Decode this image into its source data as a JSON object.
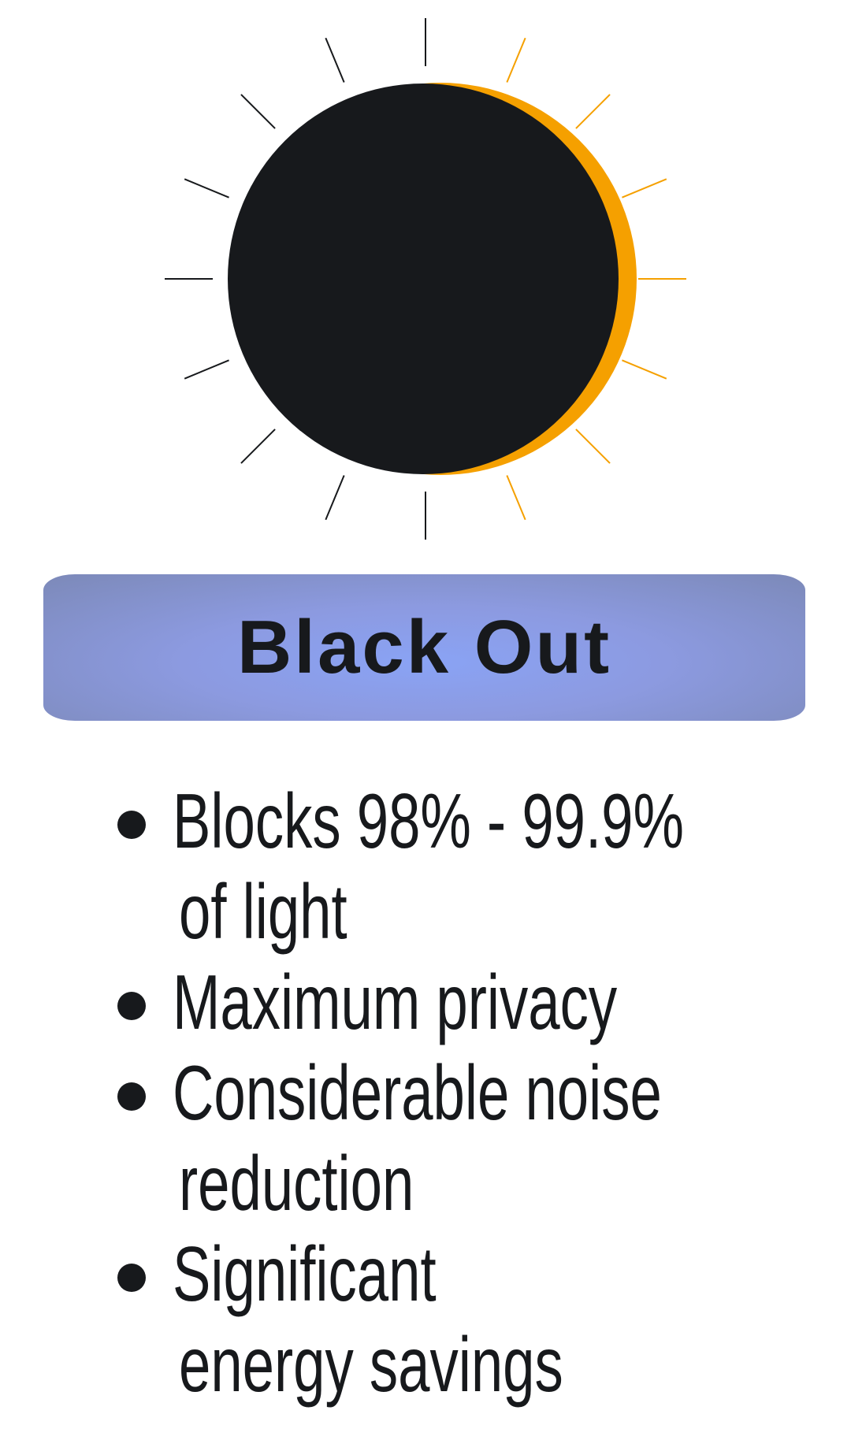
{
  "icon": {
    "name": "eclipse-sun-icon",
    "colors": {
      "moon": "#17191c",
      "corona": "#f5a000",
      "rays_left": "#17191c",
      "rays_right": "#f5a000"
    }
  },
  "banner": {
    "title": "Black Out",
    "color": "#8aa3f5"
  },
  "features": [
    {
      "lines": [
        "Blocks 98% - 99.9%",
        "of light"
      ]
    },
    {
      "lines": [
        "Maximum privacy"
      ]
    },
    {
      "lines": [
        "Considerable noise",
        "reduction"
      ]
    },
    {
      "lines": [
        "Significant",
        "energy savings"
      ]
    }
  ]
}
